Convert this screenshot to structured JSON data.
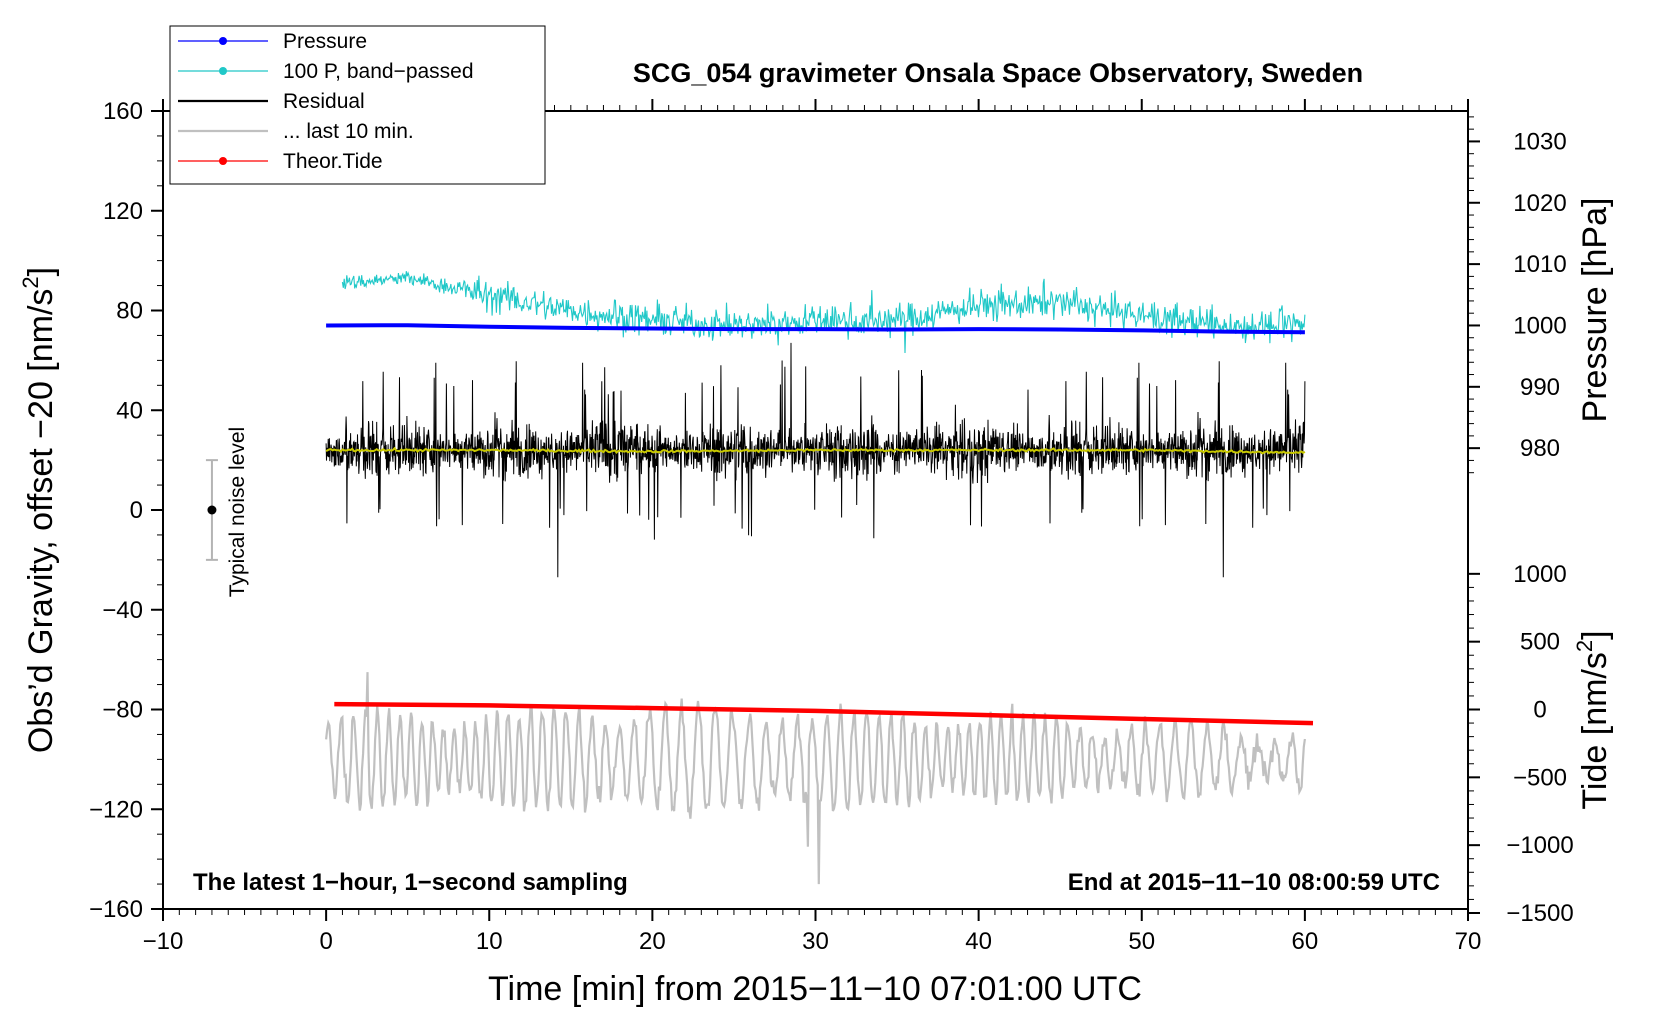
{
  "chart_data": {
    "type": "line",
    "title": "SCG_054 gravimeter Onsala Space Observatory, Sweden",
    "xlabel": "Time [min] from 2015−11−10 07:01:00 UTC",
    "ylabel": "Obs’d Gravity, offset −20 [nm/s",
    "ylabel_sup": "2",
    "ylabel_close": "]",
    "xlim": [
      -10,
      70
    ],
    "ylim": [
      -160,
      160
    ],
    "x_ticks": [
      -10,
      0,
      10,
      20,
      30,
      40,
      50,
      60,
      70
    ],
    "x_tick_labels": [
      "−10",
      "0",
      "10",
      "20",
      "30",
      "40",
      "50",
      "60",
      "70"
    ],
    "y_ticks": [
      -160,
      -120,
      -80,
      -40,
      0,
      40,
      80,
      120,
      160
    ],
    "y_tick_labels": [
      "−160",
      "−120",
      "−80",
      "−40",
      "0",
      "40",
      "80",
      "120",
      "160"
    ],
    "pressure_axis": {
      "label": "Pressure [hPa]",
      "ticks": [
        980,
        990,
        1000,
        1010,
        1020,
        1030
      ],
      "tick_labels": [
        "980",
        "990",
        "1000",
        "1010",
        "1020",
        "1030"
      ],
      "mapping_note": "pressure 1000 hPa plotted at gravity 74, 10 hPa per 24.6 nm/s2"
    },
    "tide_axis": {
      "label": "Tide [nm/s",
      "label_sup": "2",
      "label_close": "]",
      "ticks": [
        -1500,
        -1000,
        -500,
        0,
        500,
        1000
      ],
      "tick_labels": [
        "−1500",
        "−1000",
        "−500",
        "0",
        "500",
        "1000"
      ],
      "mapping_note": "tide 0 plotted at gravity -80, 500 nm/s2 per 27.2 nm/s2"
    },
    "series": [
      {
        "name": "Pressure",
        "color": "#0000ff",
        "x": [
          0,
          5,
          10,
          15,
          20,
          25,
          30,
          35,
          40,
          45,
          50,
          55,
          60
        ],
        "pressure_hPa": [
          1000.0,
          1000.05,
          999.8,
          999.6,
          999.5,
          999.4,
          999.4,
          999.35,
          999.4,
          999.35,
          999.2,
          999.0,
          998.9
        ]
      },
      {
        "name": "100 P, band−passed",
        "color": "#20c8c8",
        "x": [
          1,
          5,
          10,
          15,
          20,
          25,
          30,
          35,
          40,
          45,
          50,
          55,
          60
        ],
        "values": [
          91,
          93,
          86,
          80,
          76,
          74,
          76,
          76,
          82,
          83,
          78,
          74,
          74
        ]
      },
      {
        "name": "Residual",
        "color": "#000000",
        "x_range": [
          0,
          60
        ],
        "mean": 24,
        "typical_spread": 14,
        "extremes": [
          [
            14.2,
            -27
          ],
          [
            28.5,
            67
          ],
          [
            55,
            -27
          ]
        ]
      },
      {
        "name": "... last 10 min.",
        "color": "#c0c0c0",
        "x_range": [
          0,
          60
        ],
        "mean": -100,
        "typical_amplitude": 17,
        "extremes": [
          [
            30.2,
            -150
          ],
          [
            29.5,
            -135
          ],
          [
            2.5,
            -65
          ]
        ]
      },
      {
        "name": "Theor.Tide",
        "color": "#ff0000",
        "x": [
          0.5,
          10,
          20,
          30,
          40,
          50,
          60.5
        ],
        "tide_nm_s2": [
          40,
          30,
          10,
          -10,
          -40,
          -70,
          -100
        ]
      },
      {
        "name": "Residual smoothed",
        "color": "#c8c800",
        "x": [
          0,
          10,
          20,
          30,
          40,
          50,
          60
        ],
        "values": [
          24,
          24,
          23.5,
          24,
          24,
          24,
          23
        ]
      }
    ],
    "legend": {
      "position": "top-left",
      "entries": [
        {
          "label": "Pressure",
          "color": "#0000ff",
          "marker": "dot"
        },
        {
          "label": "100 P, band−passed",
          "color": "#20c8c8",
          "marker": "dot"
        },
        {
          "label": "Residual",
          "color": "#000000",
          "marker": "none"
        },
        {
          "label": "... last 10 min.",
          "color": "#c0c0c0",
          "marker": "none"
        },
        {
          "label": "Theor.Tide",
          "color": "#ff0000",
          "marker": "dot"
        }
      ]
    },
    "annotations": {
      "noise_label": "Typical noise level",
      "noise_bar": {
        "x": -7,
        "center": 0,
        "half_range": 20
      },
      "bottom_left": "The latest 1−hour, 1−second sampling",
      "bottom_right": "End at 2015−11−10 08:00:59 UTC"
    }
  }
}
